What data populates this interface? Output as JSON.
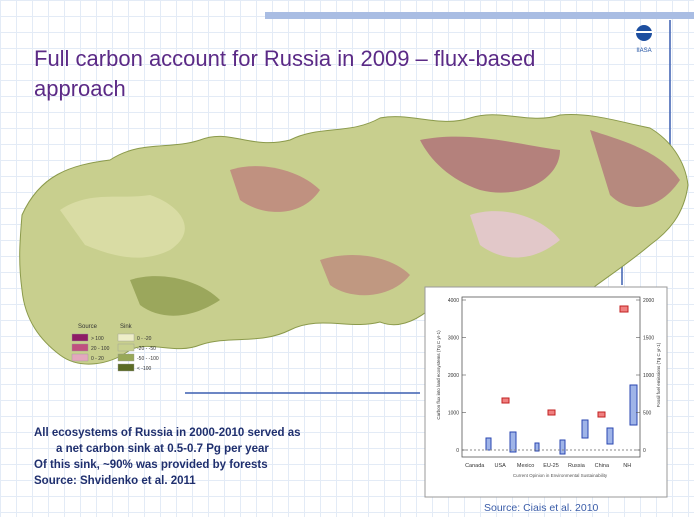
{
  "title": "Full carbon account for Russia in 2009 – flux-based approach",
  "logo": "IIASA",
  "map_legend": {
    "source": "Source",
    "sink": "Sink",
    "source_items": [
      "> 100",
      "20 - 100",
      "0 - 20"
    ],
    "sink_items": [
      "0 - -20",
      "-20 - -50",
      "-50 - -100",
      "< -100"
    ]
  },
  "inset": {
    "y_label": "Carbon flux into land ecosystems (Tg C yr-1)",
    "y2_label": "Fossil fuel emissions (Tg C yr-1)",
    "yticks": [
      0,
      1000,
      2000,
      3000,
      4000
    ],
    "y2ticks": [
      0,
      500,
      1000,
      1500,
      2000
    ],
    "categories": [
      "Canada",
      "USA",
      "Mexico",
      "EU-25",
      "Russia",
      "China",
      "NH"
    ],
    "caption": "Current Opinion in Environmental Sustainability"
  },
  "notes": [
    "All ecosystems of Russia in 2000-2010 served as",
    "a net carbon sink at 0.5-0.7 Pg per year",
    "Of this sink, ~90% was provided by forests",
    "Source: Shvidenko et al. 2011"
  ],
  "source": "Source: Ciais et al. 2010"
}
